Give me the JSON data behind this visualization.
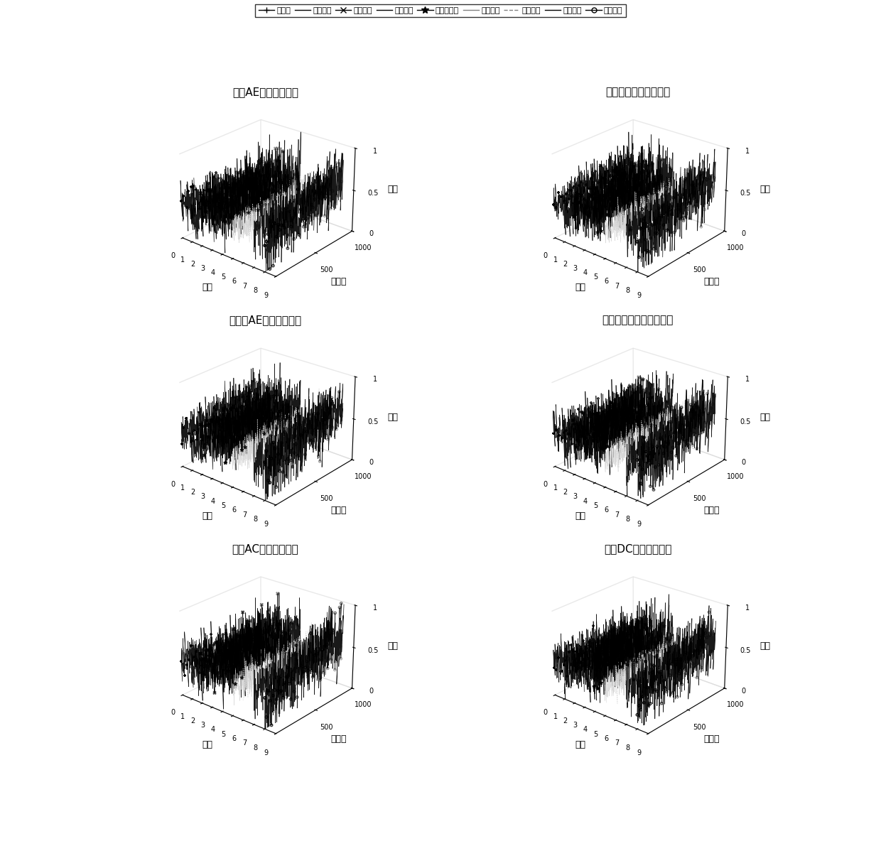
{
  "titles": [
    "主轴AE信号时域特征",
    "主轴振动信号时域特征",
    "工作台AE信号时域特征",
    "工作台振动信号时域特征",
    "主轴AC信号时域特征",
    "主轴DC信号时域特征"
  ],
  "legend_labels": [
    "平均値",
    "均方差値",
    "方根幅値",
    "均方根値",
    "最大绝对値",
    "歪度指标",
    "峰度指标",
    "峰値因子",
    "裕度因子"
  ],
  "xlabel": "特征",
  "ylabel": "幅値",
  "zlabel": "采样点",
  "n_samples": 1000,
  "n_features": 9,
  "background_color": "#ffffff",
  "title_fontsize": 11,
  "label_fontsize": 9,
  "elev": 25,
  "azim": -50
}
